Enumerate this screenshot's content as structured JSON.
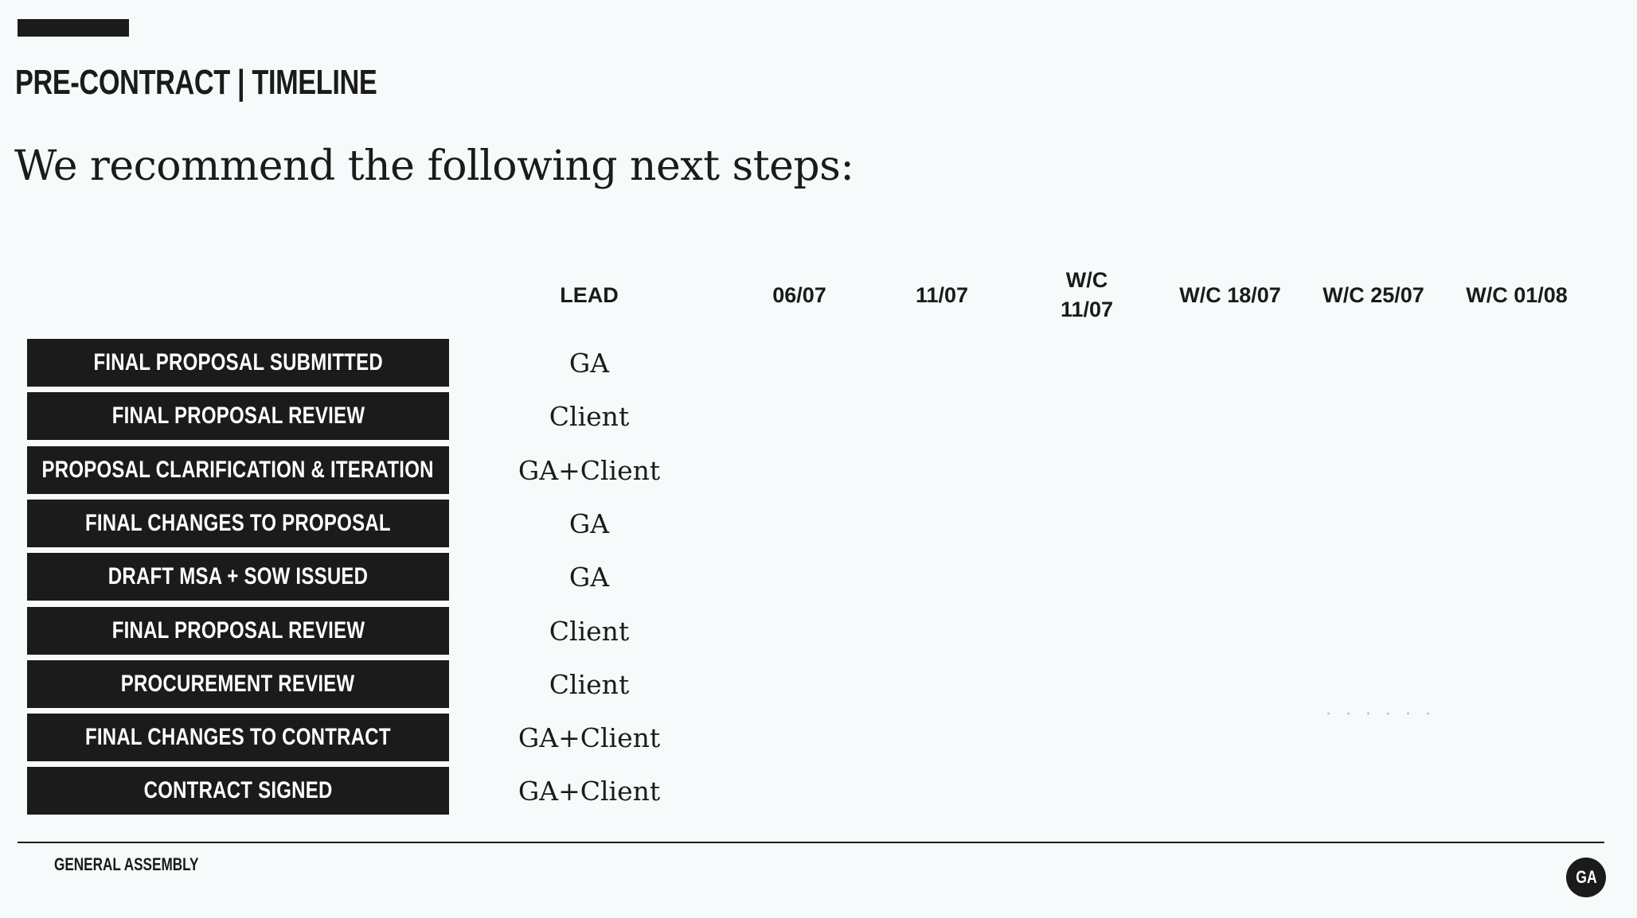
{
  "slide": {
    "eyebrow": "PRE-CONTRACT | TIMELINE",
    "headline": "We recommend the following next steps:"
  },
  "table": {
    "headers": [
      "LEAD",
      "06/07",
      "11/07",
      "W/C\n11/07",
      "W/C 18/07",
      "W/C 25/07",
      "W/C 01/08"
    ],
    "rows": [
      {
        "task": "FINAL PROPOSAL SUBMITTED",
        "lead": "GA"
      },
      {
        "task": "FINAL PROPOSAL REVIEW",
        "lead": "Client"
      },
      {
        "task": "PROPOSAL CLARIFICATION & ITERATION",
        "lead": "GA+Client"
      },
      {
        "task": "FINAL CHANGES TO PROPOSAL",
        "lead": "GA"
      },
      {
        "task": "DRAFT MSA + SOW ISSUED",
        "lead": "GA"
      },
      {
        "task": "FINAL PROPOSAL REVIEW",
        "lead": "Client"
      },
      {
        "task": "PROCUREMENT REVIEW",
        "lead": "Client"
      },
      {
        "task": "FINAL CHANGES TO CONTRACT",
        "lead": "GA+Client"
      },
      {
        "task": "CONTRACT SIGNED",
        "lead": "GA+Client"
      }
    ]
  },
  "footer": {
    "brand": "GENERAL ASSEMBLY",
    "logo_text": "GA"
  }
}
